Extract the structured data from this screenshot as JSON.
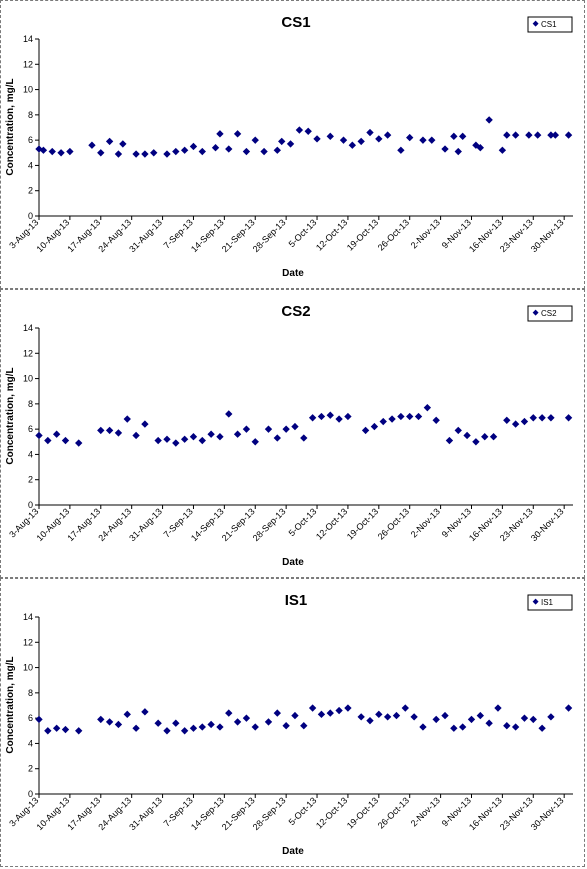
{
  "chart_data": [
    {
      "type": "scatter",
      "title": "CS1",
      "xlabel": "Date",
      "ylabel": "Concentration, mg/L",
      "ylim": [
        0,
        14
      ],
      "yticks": [
        "0",
        "2",
        "4",
        "6",
        "8",
        "10",
        "12",
        "14"
      ],
      "xlim": [
        "2013-08-03",
        "2013-12-02"
      ],
      "xticks": [
        "3-Aug-13",
        "10-Aug-13",
        "17-Aug-13",
        "24-Aug-13",
        "31-Aug-13",
        "7-Sep-13",
        "14-Sep-13",
        "21-Sep-13",
        "28-Sep-13",
        "5-Oct-13",
        "12-Oct-13",
        "19-Oct-13",
        "26-Oct-13",
        "2-Nov-13",
        "9-Nov-13",
        "16-Nov-13",
        "23-Nov-13",
        "30-Nov-13"
      ],
      "grid": false,
      "legend": "top-right",
      "marker_color": "#000080",
      "series": [
        {
          "name": "CS1",
          "x": [
            "2013-08-03",
            "2013-08-04",
            "2013-08-06",
            "2013-08-08",
            "2013-08-10",
            "2013-08-15",
            "2013-08-17",
            "2013-08-19",
            "2013-08-21",
            "2013-08-22",
            "2013-08-25",
            "2013-08-27",
            "2013-08-29",
            "2013-09-01",
            "2013-09-03",
            "2013-09-05",
            "2013-09-07",
            "2013-09-09",
            "2013-09-12",
            "2013-09-13",
            "2013-09-15",
            "2013-09-17",
            "2013-09-19",
            "2013-09-21",
            "2013-09-23",
            "2013-09-26",
            "2013-09-27",
            "2013-09-29",
            "2013-10-01",
            "2013-10-03",
            "2013-10-05",
            "2013-10-08",
            "2013-10-11",
            "2013-10-13",
            "2013-10-15",
            "2013-10-17",
            "2013-10-19",
            "2013-10-21",
            "2013-10-24",
            "2013-10-26",
            "2013-10-29",
            "2013-10-31",
            "2013-11-03",
            "2013-11-05",
            "2013-11-06",
            "2013-11-07",
            "2013-11-10",
            "2013-11-11",
            "2013-11-13",
            "2013-11-16",
            "2013-11-17",
            "2013-11-19",
            "2013-11-22",
            "2013-11-24",
            "2013-11-27",
            "2013-11-28",
            "2013-12-01"
          ],
          "y": [
            5.3,
            5.2,
            5.1,
            5.0,
            5.1,
            5.6,
            5.0,
            5.9,
            4.9,
            5.7,
            4.9,
            4.9,
            5.0,
            4.9,
            5.1,
            5.2,
            5.5,
            5.1,
            5.4,
            6.5,
            5.3,
            6.5,
            5.1,
            6.0,
            5.1,
            5.2,
            5.9,
            5.7,
            6.8,
            6.7,
            6.1,
            6.3,
            6.0,
            5.6,
            5.9,
            6.6,
            6.1,
            6.4,
            5.2,
            6.2,
            6.0,
            6.0,
            5.3,
            6.3,
            5.1,
            6.3,
            5.6,
            5.4,
            7.6,
            5.2,
            6.4,
            6.4,
            6.4,
            6.4,
            6.4,
            6.4,
            6.4
          ]
        }
      ]
    },
    {
      "type": "scatter",
      "title": "CS2",
      "xlabel": "Date",
      "ylabel": "Concentration, mg/L",
      "ylim": [
        0,
        14
      ],
      "yticks": [
        "0",
        "2",
        "4",
        "6",
        "8",
        "10",
        "12",
        "14"
      ],
      "xlim": [
        "2013-08-03",
        "2013-12-02"
      ],
      "xticks": [
        "3-Aug-13",
        "10-Aug-13",
        "17-Aug-13",
        "24-Aug-13",
        "31-Aug-13",
        "7-Sep-13",
        "14-Sep-13",
        "21-Sep-13",
        "28-Sep-13",
        "5-Oct-13",
        "12-Oct-13",
        "19-Oct-13",
        "26-Oct-13",
        "2-Nov-13",
        "9-Nov-13",
        "16-Nov-13",
        "23-Nov-13",
        "30-Nov-13"
      ],
      "grid": false,
      "legend": "top-right",
      "marker_color": "#000080",
      "series": [
        {
          "name": "CS2",
          "x": [
            "2013-08-03",
            "2013-08-05",
            "2013-08-07",
            "2013-08-09",
            "2013-08-12",
            "2013-08-17",
            "2013-08-19",
            "2013-08-21",
            "2013-08-23",
            "2013-08-25",
            "2013-08-27",
            "2013-08-30",
            "2013-09-01",
            "2013-09-03",
            "2013-09-05",
            "2013-09-07",
            "2013-09-09",
            "2013-09-11",
            "2013-09-13",
            "2013-09-15",
            "2013-09-17",
            "2013-09-19",
            "2013-09-21",
            "2013-09-24",
            "2013-09-26",
            "2013-09-28",
            "2013-09-30",
            "2013-10-02",
            "2013-10-04",
            "2013-10-06",
            "2013-10-08",
            "2013-10-10",
            "2013-10-12",
            "2013-10-16",
            "2013-10-18",
            "2013-10-20",
            "2013-10-22",
            "2013-10-24",
            "2013-10-26",
            "2013-10-28",
            "2013-10-30",
            "2013-11-01",
            "2013-11-04",
            "2013-11-06",
            "2013-11-08",
            "2013-11-10",
            "2013-11-12",
            "2013-11-14",
            "2013-11-17",
            "2013-11-19",
            "2013-11-21",
            "2013-11-23",
            "2013-11-25",
            "2013-11-27",
            "2013-12-01"
          ],
          "y": [
            5.5,
            5.1,
            5.6,
            5.1,
            4.9,
            5.9,
            5.9,
            5.7,
            6.8,
            5.5,
            6.4,
            5.1,
            5.2,
            4.9,
            5.2,
            5.4,
            5.1,
            5.6,
            5.4,
            7.2,
            5.6,
            6.0,
            5.0,
            6.0,
            5.3,
            6.0,
            6.2,
            5.3,
            6.9,
            7.0,
            7.1,
            6.8,
            7.0,
            5.9,
            6.2,
            6.6,
            6.8,
            7.0,
            7.0,
            7.0,
            7.7,
            6.7,
            5.1,
            5.9,
            5.5,
            5.0,
            5.4,
            5.4,
            6.7,
            6.4,
            6.6,
            6.9,
            6.9,
            6.9,
            6.9
          ]
        }
      ]
    },
    {
      "type": "scatter",
      "title": "IS1",
      "xlabel": "Date",
      "ylabel": "Concentration, mg/L",
      "ylim": [
        0,
        14
      ],
      "yticks": [
        "0",
        "2",
        "4",
        "6",
        "8",
        "10",
        "12",
        "14"
      ],
      "xlim": [
        "2013-08-03",
        "2013-12-02"
      ],
      "xticks": [
        "3-Aug-13",
        "10-Aug-13",
        "17-Aug-13",
        "24-Aug-13",
        "31-Aug-13",
        "7-Sep-13",
        "14-Sep-13",
        "21-Sep-13",
        "28-Sep-13",
        "5-Oct-13",
        "12-Oct-13",
        "19-Oct-13",
        "26-Oct-13",
        "2-Nov-13",
        "9-Nov-13",
        "16-Nov-13",
        "23-Nov-13",
        "30-Nov-13"
      ],
      "grid": false,
      "legend": "top-right",
      "marker_color": "#000080",
      "series": [
        {
          "name": "IS1",
          "x": [
            "2013-08-03",
            "2013-08-05",
            "2013-08-07",
            "2013-08-09",
            "2013-08-12",
            "2013-08-17",
            "2013-08-19",
            "2013-08-21",
            "2013-08-23",
            "2013-08-25",
            "2013-08-27",
            "2013-08-30",
            "2013-09-01",
            "2013-09-03",
            "2013-09-05",
            "2013-09-07",
            "2013-09-09",
            "2013-09-11",
            "2013-09-13",
            "2013-09-15",
            "2013-09-17",
            "2013-09-19",
            "2013-09-21",
            "2013-09-24",
            "2013-09-26",
            "2013-09-28",
            "2013-09-30",
            "2013-10-02",
            "2013-10-04",
            "2013-10-06",
            "2013-10-08",
            "2013-10-10",
            "2013-10-12",
            "2013-10-15",
            "2013-10-17",
            "2013-10-19",
            "2013-10-21",
            "2013-10-23",
            "2013-10-25",
            "2013-10-27",
            "2013-10-29",
            "2013-11-01",
            "2013-11-03",
            "2013-11-05",
            "2013-11-07",
            "2013-11-09",
            "2013-11-11",
            "2013-11-13",
            "2013-11-15",
            "2013-11-17",
            "2013-11-19",
            "2013-11-21",
            "2013-11-23",
            "2013-11-25",
            "2013-11-27",
            "2013-12-01"
          ],
          "y": [
            5.9,
            5.0,
            5.2,
            5.1,
            5.0,
            5.9,
            5.7,
            5.5,
            6.3,
            5.2,
            6.5,
            5.6,
            5.0,
            5.6,
            5.0,
            5.2,
            5.3,
            5.5,
            5.3,
            6.4,
            5.7,
            6.0,
            5.3,
            5.7,
            6.4,
            5.4,
            6.2,
            5.4,
            6.8,
            6.3,
            6.4,
            6.6,
            6.8,
            6.1,
            5.8,
            6.3,
            6.1,
            6.2,
            6.8,
            6.1,
            5.3,
            5.9,
            6.2,
            5.2,
            5.3,
            5.9,
            6.2,
            5.6,
            6.8,
            5.4,
            5.3,
            6.0,
            5.9,
            5.2,
            6.1,
            6.8
          ]
        }
      ]
    }
  ]
}
